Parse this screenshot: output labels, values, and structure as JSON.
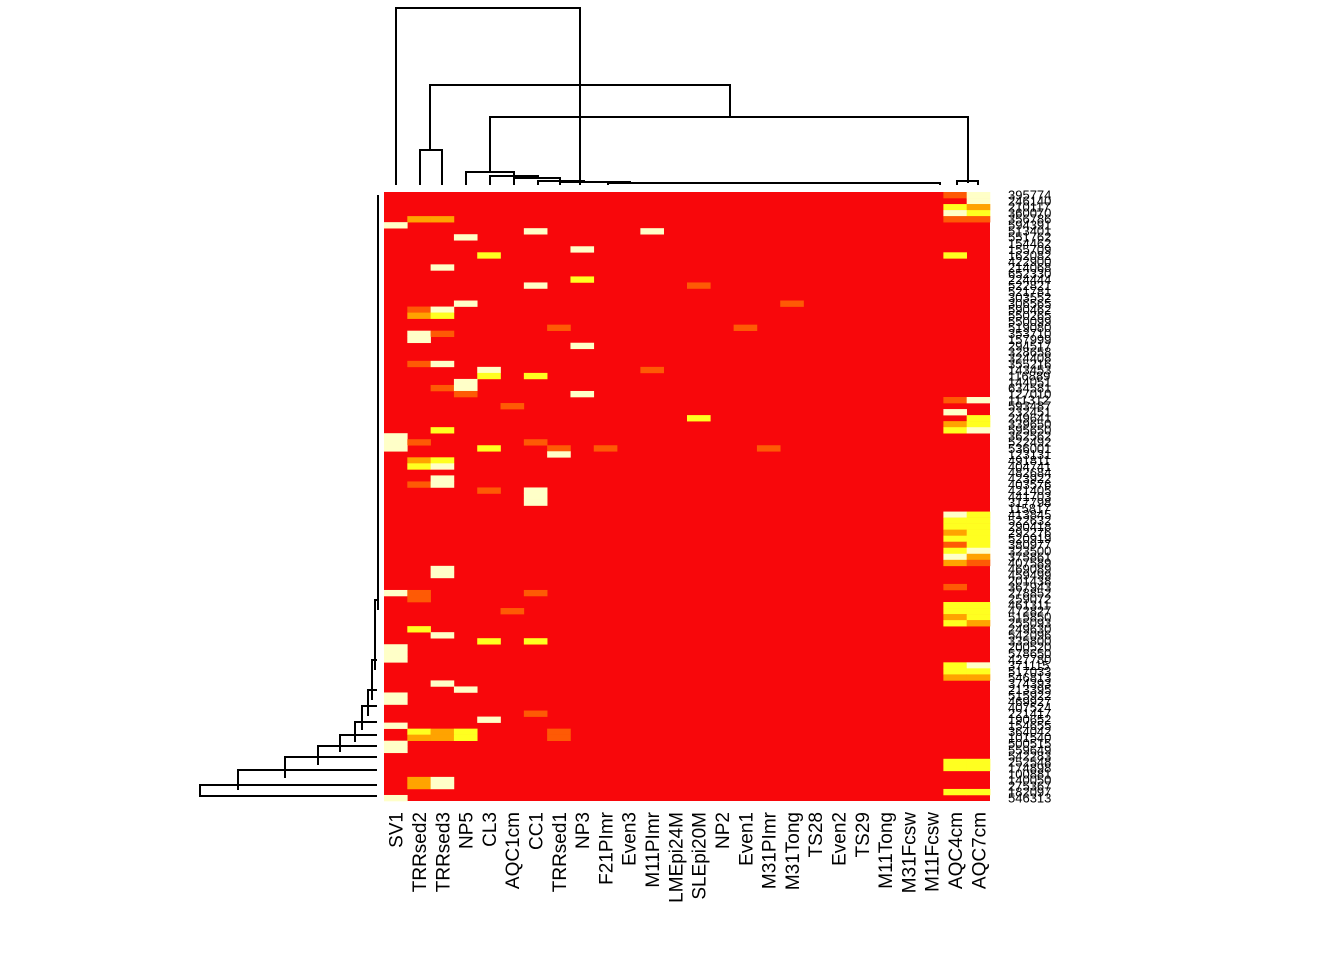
{
  "chart_data": {
    "type": "heatmap",
    "title": "",
    "xlabel": "",
    "ylabel": "",
    "colors": {
      "low": "#f8070b",
      "low_mid": "#fe5a05",
      "mid": "#ffa300",
      "mid_high": "#ffff20",
      "high": "#ffffc8"
    },
    "value_range": [
      0,
      1
    ],
    "columns": [
      "SV1",
      "TRRsed2",
      "TRRsed3",
      "NP5",
      "CL3",
      "AQC1cm",
      "CC1",
      "TRRsed1",
      "NP3",
      "F21PImr",
      "Even3",
      "M11PImr",
      "LMEpi24M",
      "SLEpi20M",
      "NP2",
      "Even1",
      "M31PImr",
      "M31Tong",
      "TS28",
      "Even2",
      "TS29",
      "M11Tong",
      "M31Fcsw",
      "M11Fcsw",
      "AQC4cm",
      "AQC7cm"
    ],
    "rows": [
      "395774",
      "246140",
      "210117",
      "360070",
      "356786",
      "594391",
      "513401",
      "551762",
      "154462",
      "155709",
      "162082",
      "422900",
      "214068",
      "652330",
      "224444",
      "522821",
      "521781",
      "303552",
      "306565",
      "590462",
      "550265",
      "550099",
      "519080",
      "353710",
      "157999",
      "294517",
      "328658",
      "324408",
      "355216",
      "143453",
      "116889",
      "144051",
      "634581",
      "127010",
      "111312",
      "593487",
      "232451",
      "249641",
      "339650",
      "595650",
      "362562",
      "522492",
      "536001",
      "123131",
      "491811",
      "404741",
      "482684",
      "423922",
      "403576",
      "421405",
      "441703",
      "317798",
      "115817",
      "413845",
      "522632",
      "290418",
      "292276",
      "520919",
      "380977",
      "323500",
      "375861",
      "407589",
      "469089",
      "459499",
      "201438",
      "367943",
      "278852",
      "259072",
      "461311",
      "472827",
      "515850",
      "255093",
      "249630",
      "542096",
      "335800",
      "200520",
      "578650",
      "427780",
      "371115",
      "517033",
      "546813",
      "374393",
      "213395",
      "515922",
      "469927",
      "407524",
      "221417",
      "190652",
      "154655",
      "364042",
      "101540",
      "500515",
      "559649",
      "542283",
      "252548",
      "174898",
      "100881",
      "140050",
      "275367",
      "182097",
      "546313"
    ],
    "highlights": [
      {
        "row": "395774",
        "col": "AQC4cm",
        "level": "low_mid"
      },
      {
        "row": "395774",
        "col": "AQC7cm",
        "level": "high"
      },
      {
        "row": "246140",
        "col": "AQC7cm",
        "level": "high"
      },
      {
        "row": "210117",
        "col": "AQC4cm",
        "level": "mid_high"
      },
      {
        "row": "210117",
        "col": "AQC7cm",
        "level": "mid"
      },
      {
        "row": "360070",
        "col": "AQC4cm",
        "level": "high"
      },
      {
        "row": "360070",
        "col": "AQC7cm",
        "level": "mid_high"
      },
      {
        "row": "356786",
        "col": "TRRsed2",
        "level": "mid"
      },
      {
        "row": "356786",
        "col": "TRRsed3",
        "level": "mid"
      },
      {
        "row": "356786",
        "col": "AQC4cm",
        "level": "low_mid"
      },
      {
        "row": "356786",
        "col": "AQC7cm",
        "level": "low_mid"
      },
      {
        "row": "594391",
        "col": "SV1",
        "level": "high"
      },
      {
        "row": "513401",
        "col": "CC1",
        "level": "high"
      },
      {
        "row": "513401",
        "col": "M11PImr",
        "level": "high"
      },
      {
        "row": "551762",
        "col": "NP5",
        "level": "high"
      },
      {
        "row": "155709",
        "col": "NP3",
        "level": "high"
      },
      {
        "row": "162082",
        "col": "CL3",
        "level": "mid_high"
      },
      {
        "row": "162082",
        "col": "AQC4cm",
        "level": "mid_high"
      },
      {
        "row": "214068",
        "col": "TRRsed3",
        "level": "high"
      },
      {
        "row": "224444",
        "col": "NP3",
        "level": "mid_high"
      },
      {
        "row": "522821",
        "col": "CC1",
        "level": "high"
      },
      {
        "row": "522821",
        "col": "SLEpi20M",
        "level": "low_mid"
      },
      {
        "row": "306565",
        "col": "NP5",
        "level": "high"
      },
      {
        "row": "306565",
        "col": "M31Tong",
        "level": "low_mid"
      },
      {
        "row": "590462",
        "col": "TRRsed2",
        "level": "low_mid"
      },
      {
        "row": "590462",
        "col": "TRRsed3",
        "level": "high"
      },
      {
        "row": "550265",
        "col": "TRRsed2",
        "level": "mid"
      },
      {
        "row": "550265",
        "col": "TRRsed3",
        "level": "mid_high"
      },
      {
        "row": "519080",
        "col": "TRRsed1",
        "level": "low_mid"
      },
      {
        "row": "519080",
        "col": "Even1",
        "level": "low_mid"
      },
      {
        "row": "353710",
        "col": "TRRsed2",
        "level": "high"
      },
      {
        "row": "353710",
        "col": "TRRsed3",
        "level": "low_mid"
      },
      {
        "row": "157999",
        "col": "TRRsed2",
        "level": "high"
      },
      {
        "row": "294517",
        "col": "NP3",
        "level": "high"
      },
      {
        "row": "355216",
        "col": "TRRsed2",
        "level": "low_mid"
      },
      {
        "row": "355216",
        "col": "TRRsed3",
        "level": "high"
      },
      {
        "row": "143453",
        "col": "CL3",
        "level": "high"
      },
      {
        "row": "143453",
        "col": "M11PImr",
        "level": "low_mid"
      },
      {
        "row": "116889",
        "col": "CL3",
        "level": "mid_high"
      },
      {
        "row": "116889",
        "col": "CC1",
        "level": "mid_high"
      },
      {
        "row": "144051",
        "col": "NP5",
        "level": "high"
      },
      {
        "row": "634581",
        "col": "TRRsed3",
        "level": "low_mid"
      },
      {
        "row": "634581",
        "col": "NP5",
        "level": "high"
      },
      {
        "row": "127010",
        "col": "NP5",
        "level": "low_mid"
      },
      {
        "row": "127010",
        "col": "NP3",
        "level": "high"
      },
      {
        "row": "111312",
        "col": "AQC4cm",
        "level": "low_mid"
      },
      {
        "row": "111312",
        "col": "AQC7cm",
        "level": "high"
      },
      {
        "row": "593487",
        "col": "AQC1cm",
        "level": "low_mid"
      },
      {
        "row": "232451",
        "col": "AQC4cm",
        "level": "high"
      },
      {
        "row": "249641",
        "col": "SLEpi20M",
        "level": "mid_high"
      },
      {
        "row": "249641",
        "col": "AQC7cm",
        "level": "mid_high"
      },
      {
        "row": "339650",
        "col": "AQC4cm",
        "level": "mid"
      },
      {
        "row": "339650",
        "col": "AQC7cm",
        "level": "mid_high"
      },
      {
        "row": "595650",
        "col": "TRRsed3",
        "level": "mid_high"
      },
      {
        "row": "595650",
        "col": "AQC4cm",
        "level": "mid_high"
      },
      {
        "row": "595650",
        "col": "AQC7cm",
        "level": "high"
      },
      {
        "row": "362562",
        "col": "SV1",
        "level": "high"
      },
      {
        "row": "522492",
        "col": "SV1",
        "level": "high"
      },
      {
        "row": "522492",
        "col": "TRRsed2",
        "level": "low_mid"
      },
      {
        "row": "522492",
        "col": "CC1",
        "level": "low_mid"
      },
      {
        "row": "536001",
        "col": "SV1",
        "level": "high"
      },
      {
        "row": "536001",
        "col": "CL3",
        "level": "mid_high"
      },
      {
        "row": "536001",
        "col": "TRRsed1",
        "level": "low_mid"
      },
      {
        "row": "536001",
        "col": "F21PImr",
        "level": "low_mid"
      },
      {
        "row": "536001",
        "col": "M31PImr",
        "level": "low_mid"
      },
      {
        "row": "123131",
        "col": "TRRsed1",
        "level": "high"
      },
      {
        "row": "491811",
        "col": "TRRsed2",
        "level": "mid"
      },
      {
        "row": "491811",
        "col": "TRRsed3",
        "level": "mid_high"
      },
      {
        "row": "404741",
        "col": "TRRsed2",
        "level": "mid_high"
      },
      {
        "row": "404741",
        "col": "TRRsed3",
        "level": "high"
      },
      {
        "row": "423922",
        "col": "TRRsed3",
        "level": "high"
      },
      {
        "row": "403576",
        "col": "TRRsed2",
        "level": "low_mid"
      },
      {
        "row": "403576",
        "col": "TRRsed3",
        "level": "high"
      },
      {
        "row": "421405",
        "col": "CL3",
        "level": "low_mid"
      },
      {
        "row": "421405",
        "col": "CC1",
        "level": "high"
      },
      {
        "row": "441703",
        "col": "CC1",
        "level": "high"
      },
      {
        "row": "317798",
        "col": "CC1",
        "level": "high"
      },
      {
        "row": "413845",
        "col": "AQC4cm",
        "level": "high"
      },
      {
        "row": "413845",
        "col": "AQC7cm",
        "level": "mid_high"
      },
      {
        "row": "522632",
        "col": "AQC4cm",
        "level": "mid_high"
      },
      {
        "row": "522632",
        "col": "AQC7cm",
        "level": "mid_high"
      },
      {
        "row": "290418",
        "col": "AQC4cm",
        "level": "mid_high"
      },
      {
        "row": "290418",
        "col": "AQC7cm",
        "level": "mid_high"
      },
      {
        "row": "292276",
        "col": "AQC4cm",
        "level": "mid"
      },
      {
        "row": "292276",
        "col": "AQC7cm",
        "level": "mid_high"
      },
      {
        "row": "520919",
        "col": "AQC4cm",
        "level": "mid_high"
      },
      {
        "row": "520919",
        "col": "AQC7cm",
        "level": "mid_high"
      },
      {
        "row": "380977",
        "col": "AQC4cm",
        "level": "low_mid"
      },
      {
        "row": "380977",
        "col": "AQC7cm",
        "level": "mid_high"
      },
      {
        "row": "323500",
        "col": "AQC4cm",
        "level": "mid_high"
      },
      {
        "row": "323500",
        "col": "AQC7cm",
        "level": "high"
      },
      {
        "row": "375861",
        "col": "AQC4cm",
        "level": "high"
      },
      {
        "row": "375861",
        "col": "AQC7cm",
        "level": "mid"
      },
      {
        "row": "407589",
        "col": "AQC4cm",
        "level": "mid"
      },
      {
        "row": "407589",
        "col": "AQC7cm",
        "level": "low_mid"
      },
      {
        "row": "469089",
        "col": "TRRsed3",
        "level": "high"
      },
      {
        "row": "459499",
        "col": "TRRsed3",
        "level": "high"
      },
      {
        "row": "367943",
        "col": "AQC4cm",
        "level": "low_mid"
      },
      {
        "row": "278852",
        "col": "SV1",
        "level": "high"
      },
      {
        "row": "278852",
        "col": "TRRsed2",
        "level": "low_mid"
      },
      {
        "row": "278852",
        "col": "CC1",
        "level": "low_mid"
      },
      {
        "row": "259072",
        "col": "TRRsed2",
        "level": "low_mid"
      },
      {
        "row": "461311",
        "col": "AQC4cm",
        "level": "mid_high"
      },
      {
        "row": "461311",
        "col": "AQC7cm",
        "level": "mid_high"
      },
      {
        "row": "472827",
        "col": "AQC1cm",
        "level": "low_mid"
      },
      {
        "row": "472827",
        "col": "AQC4cm",
        "level": "mid_high"
      },
      {
        "row": "472827",
        "col": "AQC7cm",
        "level": "mid_high"
      },
      {
        "row": "515850",
        "col": "AQC4cm",
        "level": "mid"
      },
      {
        "row": "515850",
        "col": "AQC7cm",
        "level": "mid_high"
      },
      {
        "row": "255093",
        "col": "AQC4cm",
        "level": "mid_high"
      },
      {
        "row": "255093",
        "col": "AQC7cm",
        "level": "mid"
      },
      {
        "row": "249630",
        "col": "TRRsed2",
        "level": "mid_high"
      },
      {
        "row": "542096",
        "col": "TRRsed3",
        "level": "high"
      },
      {
        "row": "335800",
        "col": "CL3",
        "level": "mid_high"
      },
      {
        "row": "335800",
        "col": "CC1",
        "level": "mid_high"
      },
      {
        "row": "200520",
        "col": "SV1",
        "level": "high"
      },
      {
        "row": "578650",
        "col": "SV1",
        "level": "high"
      },
      {
        "row": "427780",
        "col": "SV1",
        "level": "high"
      },
      {
        "row": "371115",
        "col": "AQC4cm",
        "level": "mid_high"
      },
      {
        "row": "371115",
        "col": "AQC7cm",
        "level": "high"
      },
      {
        "row": "517033",
        "col": "AQC4cm",
        "level": "mid_high"
      },
      {
        "row": "517033",
        "col": "AQC7cm",
        "level": "mid_high"
      },
      {
        "row": "546813",
        "col": "AQC4cm",
        "level": "mid"
      },
      {
        "row": "546813",
        "col": "AQC7cm",
        "level": "mid"
      },
      {
        "row": "374393",
        "col": "TRRsed3",
        "level": "high"
      },
      {
        "row": "213395",
        "col": "NP5",
        "level": "high"
      },
      {
        "row": "515922",
        "col": "SV1",
        "level": "high"
      },
      {
        "row": "469927",
        "col": "SV1",
        "level": "high"
      },
      {
        "row": "221417",
        "col": "CC1",
        "level": "low_mid"
      },
      {
        "row": "190652",
        "col": "CL3",
        "level": "high"
      },
      {
        "row": "154655",
        "col": "SV1",
        "level": "high"
      },
      {
        "row": "364042",
        "col": "TRRsed2",
        "level": "mid_high"
      },
      {
        "row": "364042",
        "col": "TRRsed3",
        "level": "mid"
      },
      {
        "row": "364042",
        "col": "NP5",
        "level": "mid_high"
      },
      {
        "row": "364042",
        "col": "TRRsed1",
        "level": "low_mid"
      },
      {
        "row": "101540",
        "col": "TRRsed2",
        "level": "mid"
      },
      {
        "row": "101540",
        "col": "TRRsed3",
        "level": "mid"
      },
      {
        "row": "101540",
        "col": "NP5",
        "level": "mid_high"
      },
      {
        "row": "101540",
        "col": "TRRsed1",
        "level": "low_mid"
      },
      {
        "row": "500515",
        "col": "SV1",
        "level": "high"
      },
      {
        "row": "559649",
        "col": "SV1",
        "level": "high"
      },
      {
        "row": "252548",
        "col": "AQC4cm",
        "level": "mid_high"
      },
      {
        "row": "252548",
        "col": "AQC7cm",
        "level": "mid_high"
      },
      {
        "row": "174898",
        "col": "AQC4cm",
        "level": "mid_high"
      },
      {
        "row": "174898",
        "col": "AQC7cm",
        "level": "mid_high"
      },
      {
        "row": "140050",
        "col": "TRRsed2",
        "level": "mid"
      },
      {
        "row": "140050",
        "col": "TRRsed3",
        "level": "high"
      },
      {
        "row": "275367",
        "col": "TRRsed2",
        "level": "mid"
      },
      {
        "row": "275367",
        "col": "TRRsed3",
        "level": "high"
      },
      {
        "row": "182097",
        "col": "AQC4cm",
        "level": "mid_high"
      },
      {
        "row": "182097",
        "col": "AQC7cm",
        "level": "mid_high"
      },
      {
        "row": "546313",
        "col": "SV1",
        "level": "high"
      }
    ]
  }
}
